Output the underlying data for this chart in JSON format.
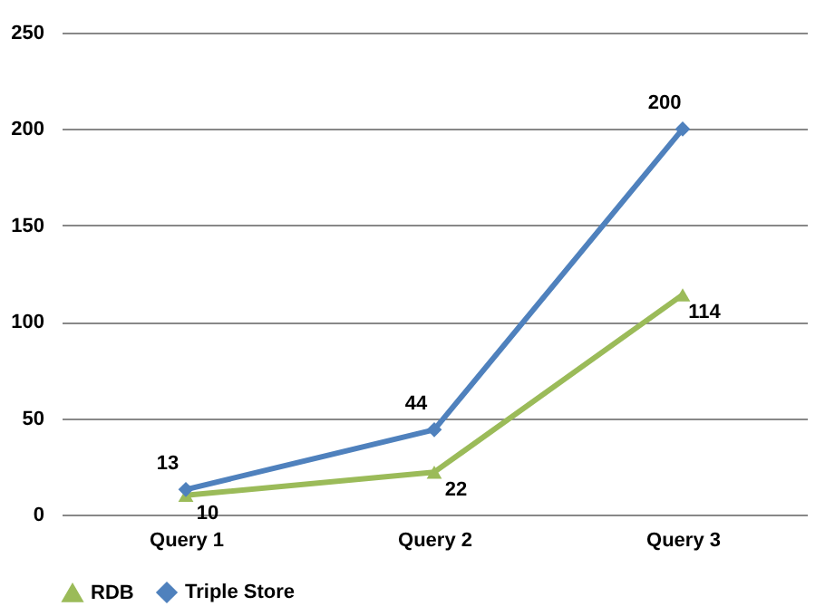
{
  "chart_data": {
    "type": "line",
    "categories": [
      "Query 1",
      "Query 2",
      "Query 3"
    ],
    "series": [
      {
        "name": "RDB",
        "color": "#9bbb59",
        "marker": "triangle",
        "values": [
          10,
          22,
          114
        ]
      },
      {
        "name": "Triple Store",
        "color": "#4f81bd",
        "marker": "diamond",
        "values": [
          13,
          44,
          200
        ]
      }
    ],
    "ylim": [
      0,
      250
    ],
    "yticks": [
      0,
      50,
      100,
      150,
      200,
      250
    ],
    "grid": "y",
    "legend": "bottom",
    "data_labels": true
  }
}
